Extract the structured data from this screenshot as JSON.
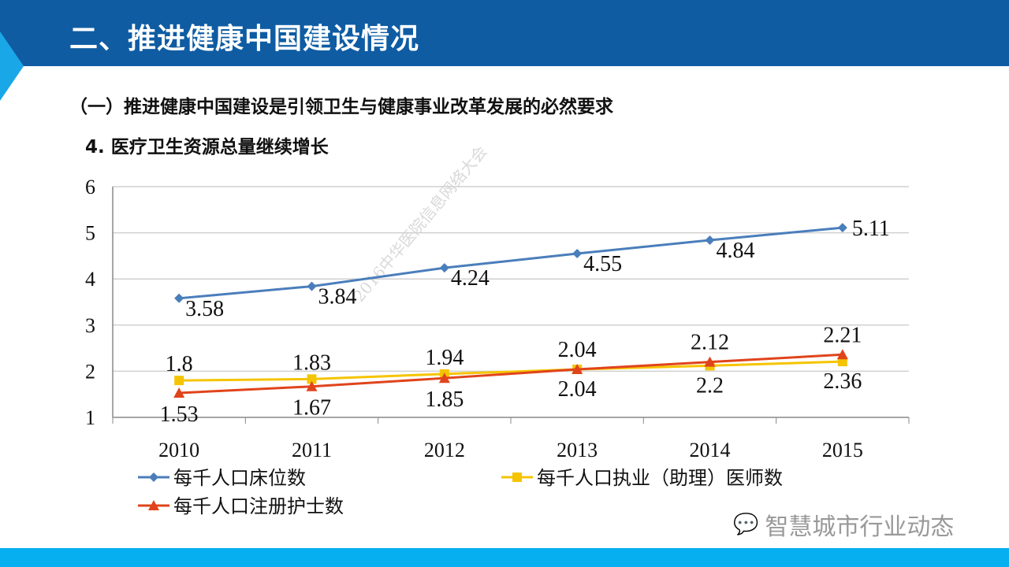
{
  "header": {
    "title": "二、推进健康中国建设情况"
  },
  "subtitle": "（一）推进健康中国建设是引领卫生与健康事业改革发展的必然要求",
  "section_title": "4. 医疗卫生资源总量继续增长",
  "watermark": "2016中华医院信息网络大会",
  "brand": {
    "icon": "wechat-icon",
    "text": "智慧城市行业动态"
  },
  "colors": {
    "header": "#0f5ca3",
    "footer": "#05aff0",
    "beds": "#4a7ebb",
    "doctors": "#f5c400",
    "nurses": "#e0441c"
  },
  "chart_data": {
    "type": "line",
    "categories": [
      "2010",
      "2011",
      "2012",
      "2013",
      "2014",
      "2015"
    ],
    "ylim": [
      1,
      6
    ],
    "yticks": [
      "1",
      "2",
      "3",
      "4",
      "5",
      "6"
    ],
    "grid": true,
    "legend_position": "bottom",
    "series": [
      {
        "name": "每千人口床位数",
        "values": [
          3.58,
          3.84,
          4.24,
          4.55,
          4.84,
          5.11
        ],
        "labels": [
          "3.58",
          "3.84",
          "4.24",
          "4.55",
          "4.84",
          "5.11"
        ],
        "color": "#4a7ebb",
        "marker": "diamond"
      },
      {
        "name": "每千人口执业（助理）医师数",
        "values": [
          1.8,
          1.83,
          1.94,
          2.04,
          2.12,
          2.21
        ],
        "labels": [
          "1.8",
          "1.83",
          "1.94",
          "2.04",
          "2.12",
          "2.21"
        ],
        "color": "#f5c400",
        "marker": "square"
      },
      {
        "name": "每千人口注册护士数",
        "values": [
          1.53,
          1.67,
          1.85,
          2.04,
          2.2,
          2.36
        ],
        "labels": [
          "1.53",
          "1.67",
          "1.85",
          "2.04",
          "2.2",
          "2.36"
        ],
        "color": "#e0441c",
        "marker": "triangle"
      }
    ]
  }
}
